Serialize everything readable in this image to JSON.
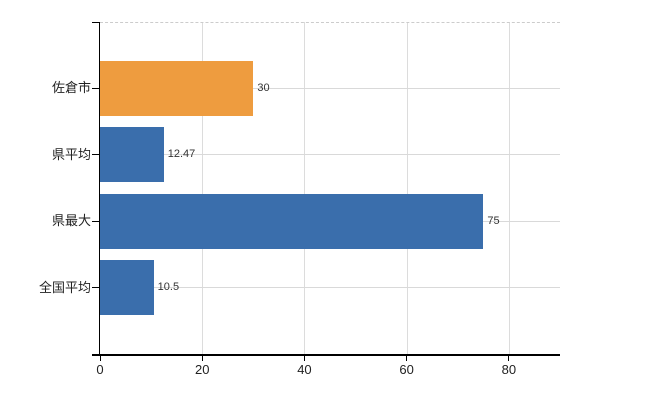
{
  "chart_data": {
    "type": "bar",
    "orientation": "horizontal",
    "title": "",
    "xlabel": "",
    "ylabel": "",
    "categories": [
      "佐倉市",
      "県平均",
      "県最大",
      "全国平均"
    ],
    "values": [
      30,
      12.47,
      75,
      10.5
    ],
    "value_labels": [
      "30",
      "12.47",
      "75",
      "10.5"
    ],
    "bar_colors": [
      "#ee9c3f",
      "#3a6eac",
      "#3a6eac",
      "#3a6eac"
    ],
    "xlim": [
      0,
      90
    ],
    "xticks": [
      0,
      20,
      40,
      60,
      80
    ],
    "grid": true,
    "legend": false
  },
  "colors": {
    "highlight_bar": "#ee9c3f",
    "default_bar": "#3a6eac",
    "axis": "#000000",
    "gridline": "#d9d9d9",
    "top_border": "#cccccc",
    "label_text": "#222222",
    "value_text": "#333333",
    "background": "#ffffff"
  }
}
